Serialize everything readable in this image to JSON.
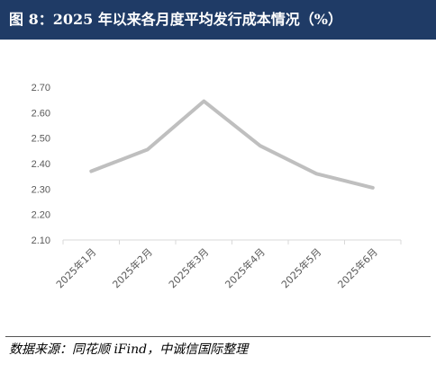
{
  "header": {
    "title": "图 8：2025 年以来各月度平均发行成本情况（%）"
  },
  "footer": {
    "source": "数据来源：同花顺 iFind，中诚信国际整理"
  },
  "chart_data": {
    "type": "line",
    "title": "",
    "xlabel": "",
    "ylabel": "",
    "categories": [
      "2025年1月",
      "2025年2月",
      "2025年3月",
      "2025年4月",
      "2025年5月",
      "2025年6月"
    ],
    "series": [
      {
        "values": [
          2.37,
          2.455,
          2.645,
          2.47,
          2.36,
          2.305
        ]
      }
    ],
    "ylim": [
      2.1,
      2.7
    ],
    "yticks": [
      "2.70",
      "2.60",
      "2.50",
      "2.40",
      "2.30",
      "2.20",
      "2.10"
    ],
    "grid": false,
    "line_color": "#bfbfbf"
  }
}
